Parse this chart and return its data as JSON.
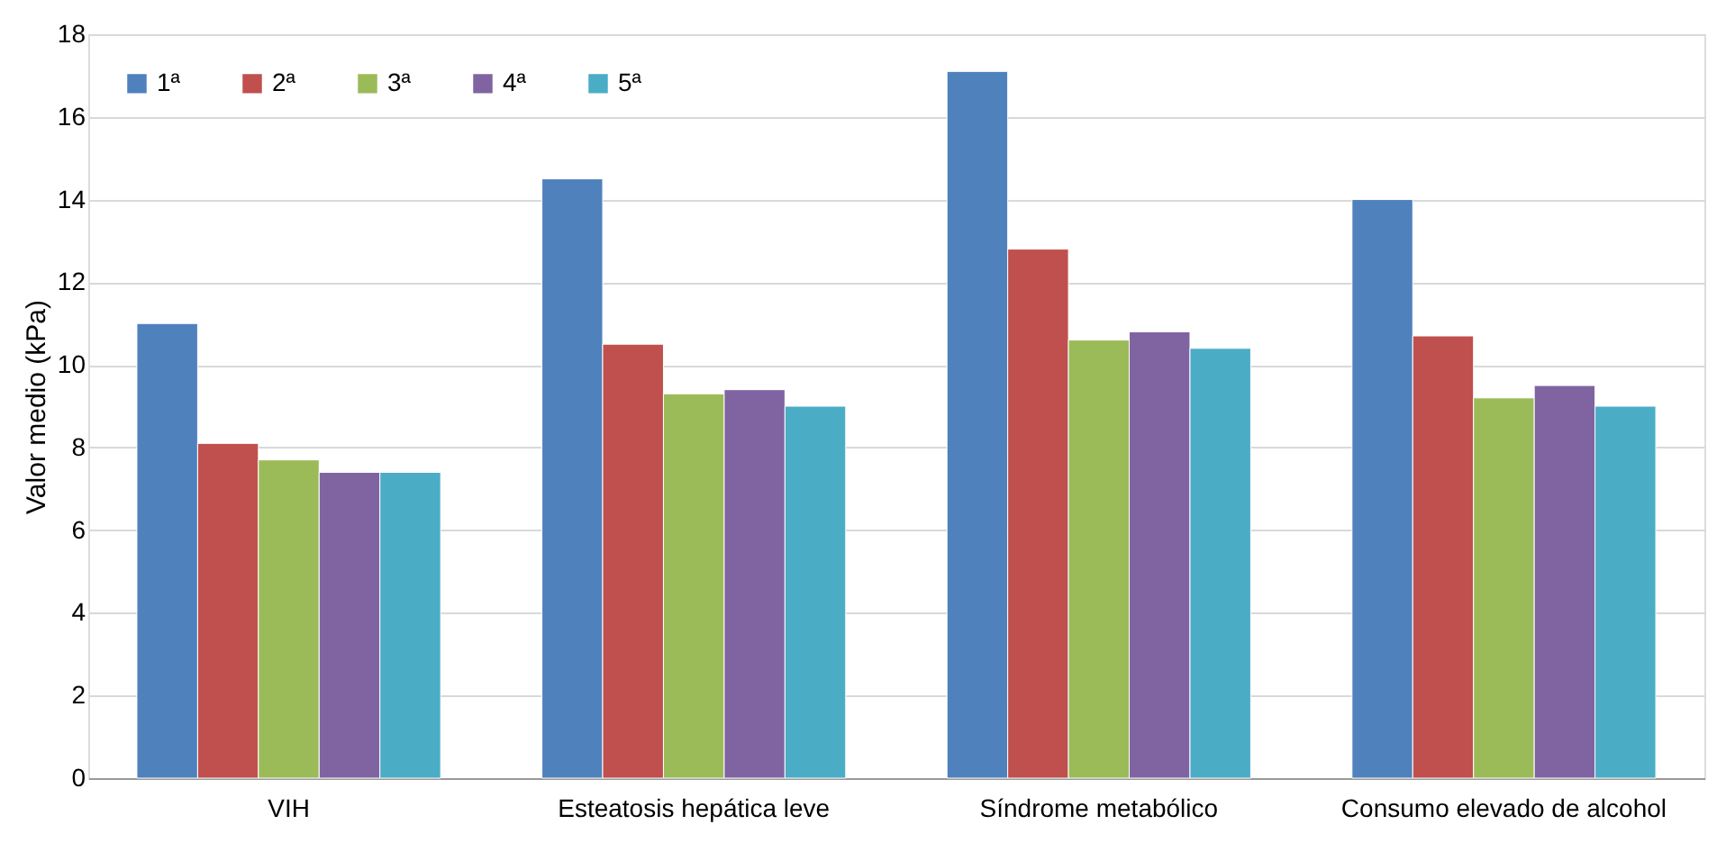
{
  "chart_data": {
    "type": "bar",
    "ylabel": "Valor medio (kPa)",
    "categories": [
      "VIH",
      "Esteatosis hepática leve",
      "Síndrome metabólico",
      "Consumo elevado de alcohol"
    ],
    "series": [
      {
        "name": "1ª",
        "color": "#4f81bd",
        "values": [
          11.0,
          14.5,
          17.1,
          14.0
        ]
      },
      {
        "name": "2ª",
        "color": "#c0504d",
        "values": [
          8.1,
          10.5,
          12.8,
          10.7
        ]
      },
      {
        "name": "3ª",
        "color": "#9bbb59",
        "values": [
          7.7,
          9.3,
          10.6,
          9.2
        ]
      },
      {
        "name": "4ª",
        "color": "#8064a2",
        "values": [
          7.4,
          9.4,
          10.8,
          9.5
        ]
      },
      {
        "name": "5ª",
        "color": "#4bacc6",
        "values": [
          7.4,
          9.0,
          10.4,
          9.0
        ]
      }
    ],
    "ylim": [
      0,
      18
    ],
    "yticks": [
      0,
      2,
      4,
      6,
      8,
      10,
      12,
      14,
      16,
      18
    ],
    "grid": "y",
    "legend": "top left"
  }
}
